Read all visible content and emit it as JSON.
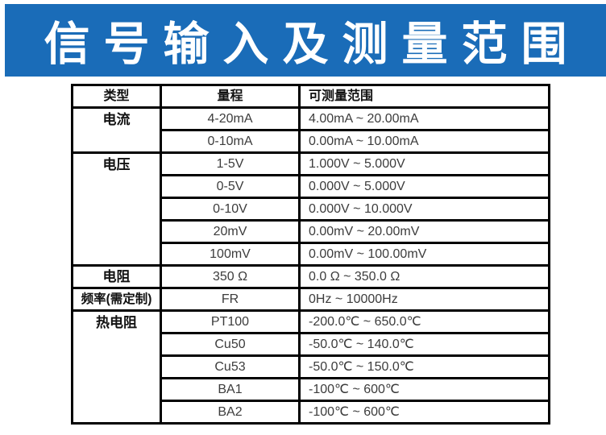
{
  "banner": {
    "title": "信号输入及测量范围",
    "bg_color": "#1a6cb8",
    "text_color": "#ffffff"
  },
  "colors": {
    "table_border": "#000000",
    "data_text": "#3c3c3c",
    "label_text": "#111111",
    "page_bg": "#ffffff"
  },
  "table": {
    "headers": {
      "type": "类型",
      "range": "量程",
      "measurable": "可测量范围"
    },
    "groups": [
      {
        "type": "电流",
        "rows": [
          [
            "4-20mA",
            "4.00mA ~ 20.00mA"
          ],
          [
            "0-10mA",
            "0.00mA ~ 10.00mA"
          ]
        ]
      },
      {
        "type": "电压",
        "rows": [
          [
            "1-5V",
            "1.000V ~ 5.000V"
          ],
          [
            "0-5V",
            "0.000V ~ 5.000V"
          ],
          [
            "0-10V",
            "0.000V ~ 10.000V"
          ],
          [
            "20mV",
            "0.00mV ~ 20.00mV"
          ],
          [
            "100mV",
            "0.00mV ~ 100.00mV"
          ]
        ]
      },
      {
        "type": "电阻",
        "rows": [
          [
            "350 Ω",
            "0.0 Ω ~ 350.0 Ω"
          ]
        ]
      },
      {
        "type": "频率(需定制)",
        "rows": [
          [
            "FR",
            "0Hz ~ 10000Hz"
          ]
        ]
      },
      {
        "type": "热电阻",
        "rows": [
          [
            "PT100",
            "-200.0℃ ~ 650.0℃"
          ],
          [
            "Cu50",
            "-50.0℃ ~ 140.0℃"
          ],
          [
            "Cu53",
            "-50.0℃ ~ 150.0℃"
          ],
          [
            "BA1",
            "-100℃ ~ 600℃"
          ],
          [
            "BA2",
            "-100℃ ~ 600℃"
          ]
        ]
      }
    ]
  }
}
